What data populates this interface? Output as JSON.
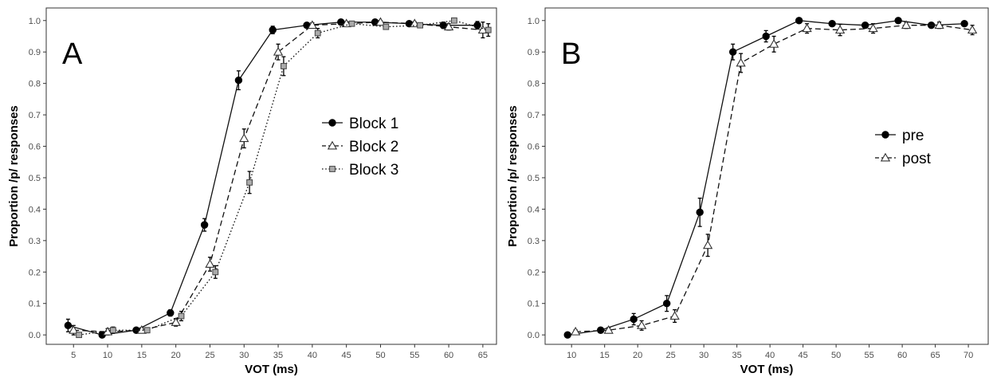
{
  "chart_data": [
    {
      "type": "line",
      "panel_label": "A",
      "xlabel": "VOT (ms)",
      "ylabel": "Proportion /p/ responses",
      "xlim": [
        1,
        67
      ],
      "ylim": [
        -0.03,
        1.04
      ],
      "x_ticks": [
        5,
        10,
        15,
        20,
        25,
        30,
        35,
        40,
        45,
        50,
        55,
        60,
        65
      ],
      "y_ticks": [
        "0.0",
        "0.1",
        "0.2",
        "0.3",
        "0.4",
        "0.5",
        "0.6",
        "0.7",
        "0.8",
        "0.9",
        "1.0"
      ],
      "grid": false,
      "legend_position": "center-right",
      "series": [
        {
          "name": "Block 1",
          "marker": "circle",
          "line": "solid",
          "color": "#000000",
          "x": [
            4.2,
            9.2,
            14.2,
            19.2,
            24.2,
            29.2,
            34.2,
            39.2,
            44.2,
            49.2,
            54.2,
            59.2,
            64.2
          ],
          "y": [
            0.03,
            0.0,
            0.015,
            0.07,
            0.35,
            0.81,
            0.97,
            0.985,
            0.995,
            0.995,
            0.99,
            0.985,
            0.985
          ],
          "err": [
            0.02,
            0.008,
            0.008,
            0.01,
            0.02,
            0.03,
            0.012,
            0.006,
            0.005,
            0.005,
            0.006,
            0.01,
            0.012
          ]
        },
        {
          "name": "Block 2",
          "marker": "triangle",
          "line": "dashed",
          "color": "#000000",
          "x": [
            5.0,
            10.0,
            15.0,
            20.0,
            25.0,
            30.0,
            35.0,
            40.0,
            45.0,
            50.0,
            55.0,
            60.0,
            65.0
          ],
          "y": [
            0.015,
            0.01,
            0.015,
            0.04,
            0.225,
            0.625,
            0.9,
            0.985,
            0.99,
            0.995,
            0.99,
            0.98,
            0.97
          ],
          "err": [
            0.015,
            0.01,
            0.008,
            0.012,
            0.022,
            0.03,
            0.025,
            0.008,
            0.006,
            0.005,
            0.006,
            0.01,
            0.025
          ]
        },
        {
          "name": "Block 3",
          "marker": "square",
          "line": "dotted",
          "color": "#000000",
          "x": [
            5.8,
            10.8,
            15.8,
            20.8,
            25.8,
            30.8,
            35.8,
            40.8,
            45.8,
            50.8,
            55.8,
            60.8,
            65.8
          ],
          "y": [
            0.0,
            0.015,
            0.015,
            0.06,
            0.2,
            0.485,
            0.855,
            0.96,
            0.99,
            0.98,
            0.985,
            1.0,
            0.97
          ],
          "err": [
            0.006,
            0.01,
            0.008,
            0.015,
            0.02,
            0.035,
            0.03,
            0.015,
            0.006,
            0.008,
            0.006,
            0.004,
            0.02
          ]
        }
      ]
    },
    {
      "type": "line",
      "panel_label": "B",
      "xlabel": "VOT (ms)",
      "ylabel": "Proportion /p/ responses",
      "xlim": [
        6,
        73
      ],
      "ylim": [
        -0.03,
        1.04
      ],
      "x_ticks": [
        10,
        15,
        20,
        25,
        30,
        35,
        40,
        45,
        50,
        55,
        60,
        65,
        70
      ],
      "y_ticks": [
        "0.0",
        "0.1",
        "0.2",
        "0.3",
        "0.4",
        "0.5",
        "0.6",
        "0.7",
        "0.8",
        "0.9",
        "1.0"
      ],
      "grid": false,
      "legend_position": "center-right",
      "series": [
        {
          "name": "pre",
          "marker": "circle",
          "line": "solid",
          "color": "#000000",
          "x": [
            9.4,
            14.4,
            19.4,
            24.4,
            29.4,
            34.4,
            39.4,
            44.4,
            49.4,
            54.4,
            59.4,
            64.4,
            69.4
          ],
          "y": [
            0.0,
            0.015,
            0.05,
            0.1,
            0.39,
            0.9,
            0.95,
            1.0,
            0.99,
            0.985,
            1.0,
            0.985,
            0.99
          ],
          "err": [
            0.004,
            0.008,
            0.018,
            0.025,
            0.045,
            0.025,
            0.018,
            0.004,
            0.006,
            0.008,
            0.004,
            0.008,
            0.006
          ]
        },
        {
          "name": "post",
          "marker": "triangle",
          "line": "dashed",
          "color": "#000000",
          "x": [
            10.6,
            15.6,
            20.6,
            25.6,
            30.6,
            35.6,
            40.6,
            45.6,
            50.6,
            55.6,
            60.6,
            65.6,
            70.6
          ],
          "y": [
            0.01,
            0.015,
            0.03,
            0.06,
            0.285,
            0.865,
            0.925,
            0.975,
            0.97,
            0.975,
            0.985,
            0.985,
            0.97
          ],
          "err": [
            0.006,
            0.008,
            0.015,
            0.02,
            0.035,
            0.03,
            0.025,
            0.015,
            0.018,
            0.015,
            0.01,
            0.01,
            0.015
          ]
        }
      ]
    }
  ]
}
